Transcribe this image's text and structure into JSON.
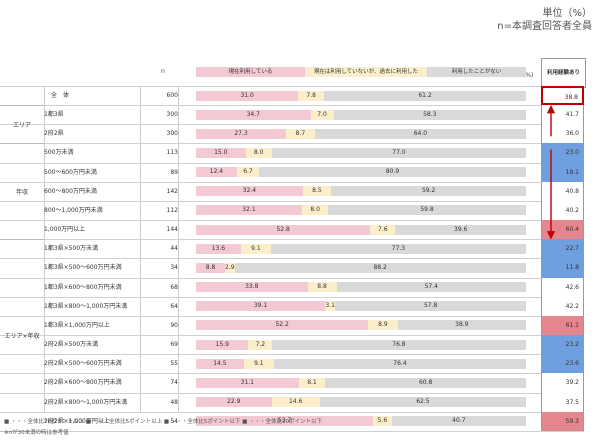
{
  "header": {
    "unit": "単位（%）",
    "base": "n=本調査回答者全員",
    "n_label": "n",
    "pct_label": "(%)",
    "experience_label": "利用経験あり"
  },
  "legend": [
    {
      "label": "現在利用している",
      "color": "#f3c9d3"
    },
    {
      "label": "現在は利用していないが、過去に利用した",
      "color": "#fbeecb"
    },
    {
      "label": "利用したことがない",
      "color": "#d9d9d9"
    }
  ],
  "groups": [
    {
      "label": "エリア",
      "start": 1,
      "end": 2
    },
    {
      "label": "年収",
      "start": 3,
      "end": 7
    },
    {
      "label": "エリア×年収",
      "start": 8,
      "end": 17
    }
  ],
  "chart_data": {
    "type": "bar",
    "stacked": true,
    "orientation": "horizontal",
    "series_names": [
      "現在利用している",
      "現在は利用していないが、過去に利用した",
      "利用したことがない"
    ],
    "rows": [
      {
        "label": "全　体",
        "n": "600",
        "values": [
          31.0,
          7.8,
          61.2
        ],
        "experience": "38.8",
        "highlight": "total"
      },
      {
        "label": "1都3県",
        "n": "300",
        "values": [
          34.7,
          7.0,
          58.3
        ],
        "experience": "41.7",
        "highlight": ""
      },
      {
        "label": "2府2県",
        "n": "300",
        "values": [
          27.3,
          8.7,
          64.0
        ],
        "experience": "36.0",
        "highlight": ""
      },
      {
        "label": "500万未満",
        "n": "113",
        "values": [
          15.0,
          8.0,
          77.0
        ],
        "experience": "23.0",
        "highlight": "blue"
      },
      {
        "label": "500～600万円未満",
        "n": "89",
        "values": [
          12.4,
          6.7,
          80.9
        ],
        "experience": "19.1",
        "highlight": "blue"
      },
      {
        "label": "600～800万円未満",
        "n": "142",
        "values": [
          32.4,
          8.5,
          59.2
        ],
        "experience": "40.8",
        "highlight": ""
      },
      {
        "label": "800～1,000万円未満",
        "n": "112",
        "values": [
          32.1,
          8.0,
          59.8
        ],
        "experience": "40.2",
        "highlight": ""
      },
      {
        "label": "1,000万円以上",
        "n": "144",
        "values": [
          52.8,
          7.6,
          39.6
        ],
        "experience": "60.4",
        "highlight": "red"
      },
      {
        "label": "1都3県×500万未満",
        "n": "44",
        "values": [
          13.6,
          9.1,
          77.3
        ],
        "experience": "22.7",
        "highlight": "blue"
      },
      {
        "label": "1都3県×500～600万円未満",
        "n": "34",
        "values": [
          8.8,
          2.9,
          88.2
        ],
        "experience": "11.8",
        "highlight": "blue"
      },
      {
        "label": "1都3県×600～800万円未満",
        "n": "68",
        "values": [
          33.8,
          8.8,
          57.4
        ],
        "experience": "42.6",
        "highlight": ""
      },
      {
        "label": "1都3県×800～1,000万円未満",
        "n": "64",
        "values": [
          39.1,
          3.1,
          57.8
        ],
        "experience": "42.2",
        "highlight": ""
      },
      {
        "label": "1都3県×1,000万円以上",
        "n": "90",
        "values": [
          52.2,
          8.9,
          38.9
        ],
        "experience": "61.1",
        "highlight": "red"
      },
      {
        "label": "2府2県×500万未満",
        "n": "69",
        "values": [
          15.9,
          7.2,
          76.8
        ],
        "experience": "23.2",
        "highlight": "blue"
      },
      {
        "label": "2府2県×500～600万円未満",
        "n": "55",
        "values": [
          14.5,
          9.1,
          76.4
        ],
        "experience": "23.6",
        "highlight": "blue"
      },
      {
        "label": "2府2県×600～800万円未満",
        "n": "74",
        "values": [
          31.1,
          8.1,
          60.8
        ],
        "experience": "39.2",
        "highlight": ""
      },
      {
        "label": "2府2県×800～1,000万円未満",
        "n": "48",
        "values": [
          22.9,
          14.6,
          62.5
        ],
        "experience": "37.5",
        "highlight": ""
      },
      {
        "label": "2府2県×1,000万円以上",
        "n": "54",
        "values": [
          53.7,
          5.6,
          40.7
        ],
        "experience": "59.3",
        "highlight": "red"
      }
    ],
    "colors": {
      "current": "#f3c9d3",
      "past": "#fbeecb",
      "never": "#d9d9d9",
      "blue_hl": "#6f9fe0",
      "red_hl": "#e4868e"
    }
  },
  "footnotes": {
    "line1": "■ ・・・全体比10ポイント以上 ■ ・・・全体比5ポイント以上 ■ ・・・全体比5ポイント以下 ■ ・・・全体比10ポイント以下",
    "line2": "※nが30未満の時は参考値"
  }
}
